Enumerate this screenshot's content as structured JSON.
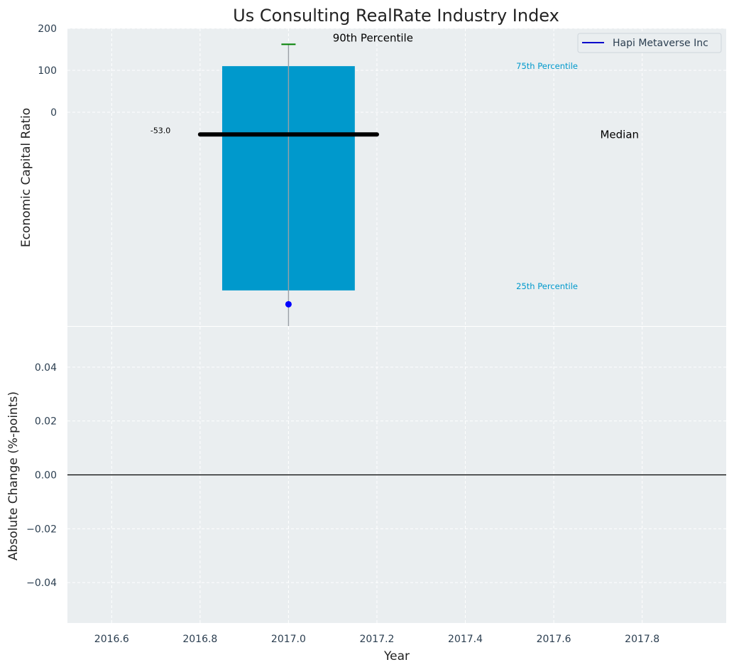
{
  "colors": {
    "panel_bg": "#eaeef0",
    "grid": "#ffffff",
    "box_fill": "#0099cc",
    "median": "#000000",
    "whisker": "#9aa0a6",
    "p90_marker": "#008000",
    "company_dot": "#0000ff",
    "legend_line": "#0000cc",
    "percentile_label": "#0099cc",
    "tick_text": "#2b3e50",
    "title_text": "#222222"
  },
  "chart_data": [
    {
      "type": "box",
      "title": "Us Consulting RealRate Industry Index",
      "xlabel": "",
      "ylabel": "Economic Capital Ratio",
      "xlim": [
        2016.5,
        2017.99
      ],
      "ylim": [
        -510,
        200
      ],
      "y_ticks": [
        0,
        100,
        200
      ],
      "y_tick_labels": [
        "0",
        "100",
        "200"
      ],
      "grid": true,
      "box": {
        "x": 2017.0,
        "width": 0.3,
        "q1": -425,
        "q3": 110,
        "median": -53.0,
        "median_label": "-53.0",
        "median_line_x": [
          2016.8,
          2017.2
        ],
        "p90": 162,
        "whisker_low": -510
      },
      "company_point": {
        "x": 2017.0,
        "y": -458,
        "series": "Hapi Metaverse Inc"
      },
      "annotations": {
        "p90": "90th Percentile",
        "p75": "75th Percentile",
        "p25": "25th Percentile",
        "median": "Median"
      },
      "legend": {
        "position": "top-right",
        "entries": [
          "Hapi Metaverse Inc"
        ]
      }
    },
    {
      "type": "line",
      "title": "",
      "xlabel": "Year",
      "ylabel": "Absolute Change (%-points)",
      "xlim": [
        2016.5,
        2017.99
      ],
      "ylim": [
        -0.055,
        0.055
      ],
      "x_ticks": [
        2016.6,
        2016.8,
        2017.0,
        2017.2,
        2017.4,
        2017.6,
        2017.8
      ],
      "x_tick_labels": [
        "2016.6",
        "2016.8",
        "2017.0",
        "2017.2",
        "2017.4",
        "2017.6",
        "2017.8"
      ],
      "y_ticks": [
        -0.04,
        -0.02,
        0.0,
        0.02,
        0.04
      ],
      "y_tick_labels": [
        "−0.04",
        "−0.02",
        "0.00",
        "0.02",
        "0.04"
      ],
      "reference_line": 0.0,
      "series": [],
      "grid": true
    }
  ]
}
